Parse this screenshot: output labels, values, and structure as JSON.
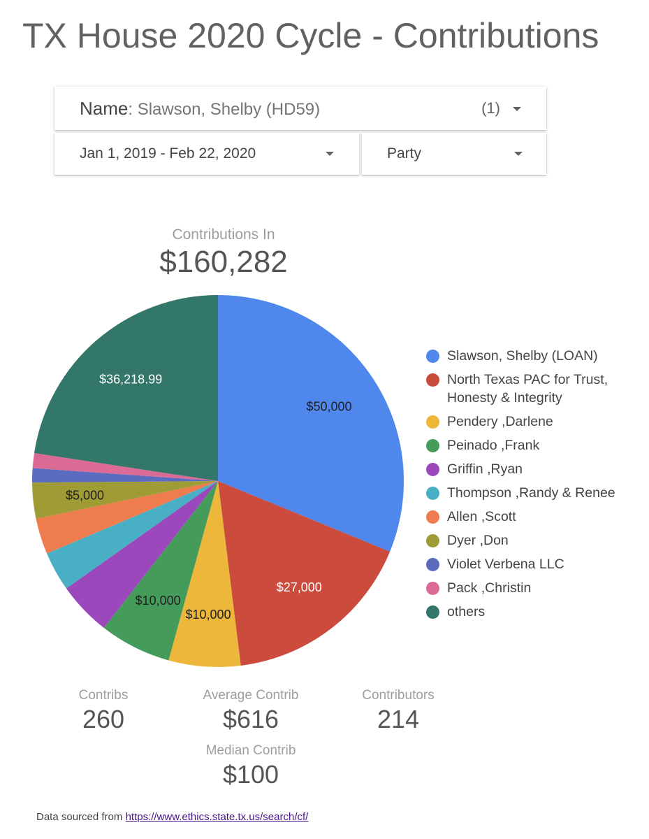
{
  "header": {
    "title": "TX House 2020 Cycle - Contributions"
  },
  "filters": {
    "name_label": "Name",
    "name_sep": ": ",
    "name_value": "Slawson, Shelby (HD59)",
    "name_count": "(1)",
    "date_range": "Jan 1, 2019 - Feb 22, 2020",
    "party_label": "Party"
  },
  "summary": {
    "label": "Contributions In",
    "value": "$160,282"
  },
  "chart_data": {
    "type": "pie",
    "title": "",
    "total": 160282,
    "slices": [
      {
        "name": "Slawson, Shelby (LOAN)",
        "value": 50000,
        "label": "$50,000",
        "color": "#4f87ec",
        "label_color": "#1f1f1f"
      },
      {
        "name": "North Texas PAC for Trust, Honesty & Integrity",
        "value": 27000,
        "label": "$27,000",
        "color": "#cb4c3c",
        "label_color": "#ffffff"
      },
      {
        "name": "Pendery ,Darlene",
        "value": 10000,
        "label": "$10,000",
        "color": "#ecb73a",
        "label_color": "#1f1f1f"
      },
      {
        "name": "Peinado ,Frank",
        "value": 10000,
        "label": "$10,000",
        "color": "#459c5a",
        "label_color": "#1f1f1f"
      },
      {
        "name": "Griffin ,Ryan",
        "value": 7500,
        "label": "",
        "color": "#9a48bc",
        "label_color": "#ffffff"
      },
      {
        "name": "Thompson ,Randy & Renee",
        "value": 5500,
        "label": "",
        "color": "#48afc4",
        "label_color": "#1f1f1f"
      },
      {
        "name": "Allen ,Scott",
        "value": 5000,
        "label": "",
        "color": "#ef7c4e",
        "label_color": "#1f1f1f"
      },
      {
        "name": "Dyer ,Don",
        "value": 5000,
        "label": "$5,000",
        "color": "#a09c35",
        "label_color": "#1f1f1f"
      },
      {
        "name": "Violet Verbena LLC",
        "value": 2000,
        "label": "",
        "color": "#5b6cbf",
        "label_color": "#ffffff"
      },
      {
        "name": "Pack ,Christin",
        "value": 2063,
        "label": "",
        "color": "#db6b94",
        "label_color": "#ffffff"
      },
      {
        "name": "others",
        "value": 36218.99,
        "label": "$36,218.99",
        "color": "#33766a",
        "label_color": "#ffffff"
      }
    ],
    "legend_position": "right"
  },
  "stats": {
    "contribs_label": "Contribs",
    "contribs_value": "260",
    "avg_label": "Average Contrib",
    "avg_value": "$616",
    "contributors_label": "Contributors",
    "contributors_value": "214",
    "median_label": "Median Contrib",
    "median_value": "$100"
  },
  "footer": {
    "text": "Data sourced from ",
    "link": "https://www.ethics.state.tx.us/search/cf/"
  }
}
